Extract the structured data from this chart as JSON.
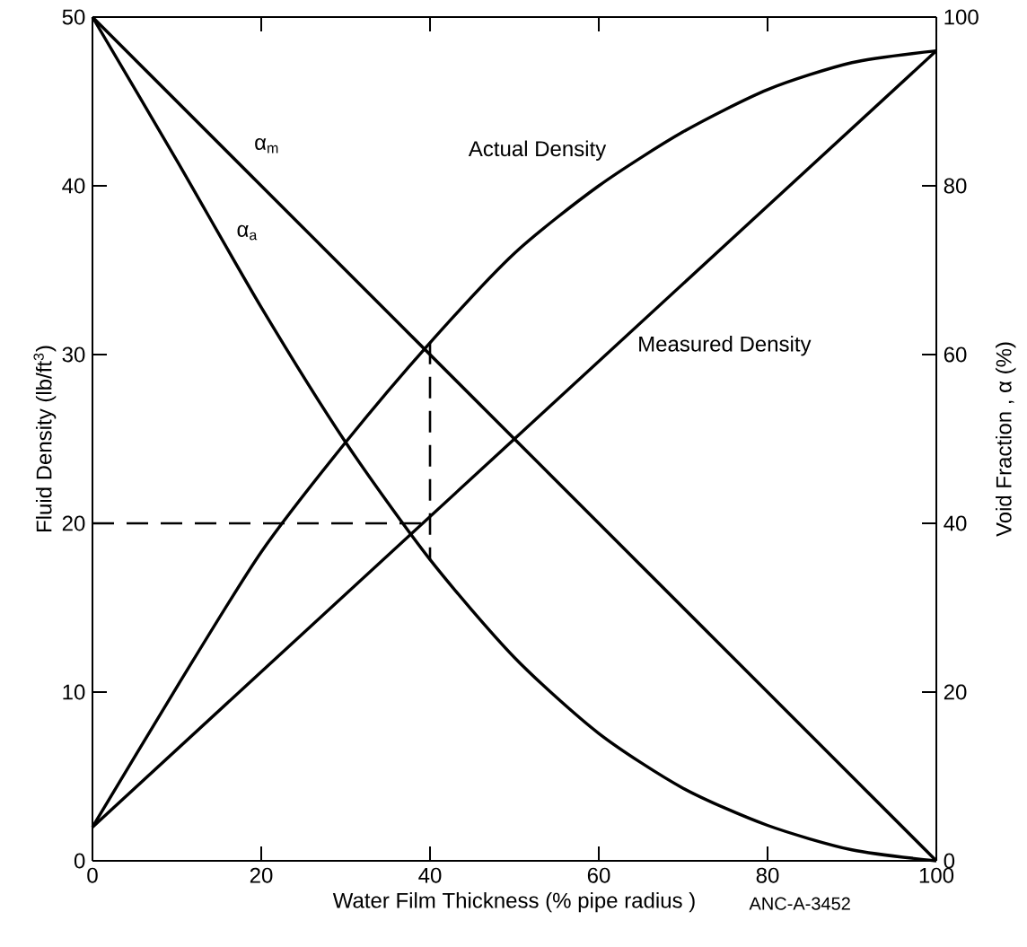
{
  "chart_data": {
    "type": "line",
    "xlabel": "Water Film Thickness (% pipe radius )",
    "ylabel": "Fluid Density (lb/ft$^{3}$)",
    "y2label": "Void Fraction , α (%)",
    "xlim": [
      0,
      100
    ],
    "xticks": [
      0,
      20,
      40,
      60,
      80,
      100
    ],
    "ylim": [
      0,
      50
    ],
    "yticks": [
      0,
      10,
      20,
      30,
      40,
      50
    ],
    "y2lim": [
      0,
      100
    ],
    "y2ticks": [
      0,
      20,
      40,
      60,
      80,
      100
    ],
    "grid": false,
    "legend": false,
    "annotations": [
      "ANC-A-3452"
    ],
    "series": [
      {
        "name": "Actual Density",
        "color": "#000000",
        "x": [
          0,
          10,
          20,
          30,
          40,
          50,
          60,
          70,
          80,
          90,
          100
        ],
        "values": [
          2,
          10.3,
          18.3,
          24.8,
          30.7,
          36,
          40,
          43.2,
          45.7,
          47.3,
          48
        ]
      },
      {
        "name": "Measured Density",
        "color": "#000000",
        "x": [
          0,
          50,
          100
        ],
        "values": [
          2,
          25,
          48
        ]
      },
      {
        "name": "α$_{m}$",
        "color": "#000000",
        "axis": "y2",
        "x": [
          0,
          50,
          100
        ],
        "values": [
          100,
          50,
          0
        ]
      },
      {
        "name": "α$_{a}$",
        "color": "#000000",
        "axis": "y2",
        "x": [
          0,
          10,
          20,
          30,
          40,
          50,
          60,
          70,
          80,
          90,
          100
        ],
        "values": [
          100,
          83,
          65.6,
          49.6,
          35.7,
          24.1,
          15.1,
          8.6,
          4.2,
          1.3,
          0
        ]
      },
      {
        "color": "#000000",
        "line_style": "dashed",
        "x": [
          0,
          40
        ],
        "values": [
          20,
          20
        ]
      },
      {
        "color": "#000000",
        "line_style": "dashed",
        "x": [
          40,
          40
        ],
        "values": [
          30.7,
          17.8
        ]
      }
    ]
  }
}
